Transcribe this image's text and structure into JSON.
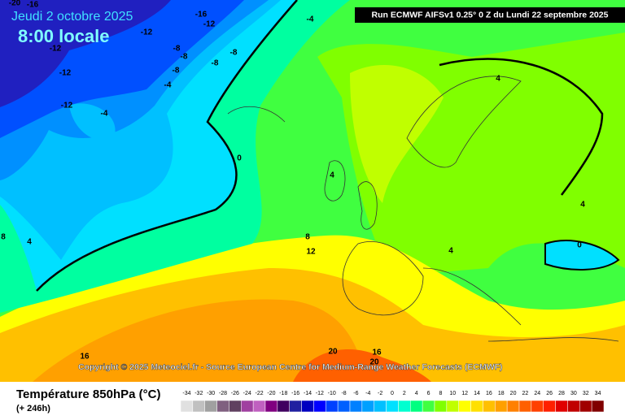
{
  "header": {
    "date_line": "Jeudi 2 octobre 2025",
    "time_line": "8:00 locale",
    "run_info": "Run ECMWF AIFSv1 0.25° 0 Z du Lundi 22 septembre 2025"
  },
  "copyright": "Copyright © 2025 Meteociel.fr - Source European Centre for Medium-Range Weather Forecasts (ECMWF)",
  "footer": {
    "title": "Température 850hPa (°C)",
    "lead": "(+ 246h)"
  },
  "contour_labels": [
    -20,
    -16,
    -16,
    -12,
    -4,
    -12,
    -12,
    -8,
    -8,
    -8,
    -8,
    -8,
    -12,
    -4,
    -12,
    -4,
    0,
    4,
    4,
    4,
    8,
    12,
    4,
    0,
    4,
    8,
    16,
    20,
    16,
    20
  ],
  "legend": {
    "labels": [
      -34,
      -32,
      -30,
      -28,
      -26,
      -24,
      -22,
      -20,
      -18,
      -16,
      -14,
      -12,
      -10,
      -8,
      -6,
      -4,
      -2,
      0,
      2,
      4,
      6,
      8,
      10,
      12,
      14,
      16,
      18,
      20,
      22,
      24,
      26,
      28,
      30,
      32,
      34
    ],
    "colors": [
      "#e0e0e0",
      "#c0c0c0",
      "#a0a0a0",
      "#806080",
      "#604060",
      "#a040a0",
      "#c060c0",
      "#800080",
      "#400060",
      "#2020a0",
      "#0000c0",
      "#0000ff",
      "#0040ff",
      "#0060ff",
      "#0080ff",
      "#00a0ff",
      "#00c0ff",
      "#00e0ff",
      "#00ffd0",
      "#00ff80",
      "#40ff40",
      "#80ff00",
      "#c0ff00",
      "#ffff00",
      "#ffe000",
      "#ffc000",
      "#ffa000",
      "#ff8000",
      "#ff6000",
      "#ff4000",
      "#ff2000",
      "#e00000",
      "#c00000",
      "#a00000",
      "#800000"
    ]
  }
}
